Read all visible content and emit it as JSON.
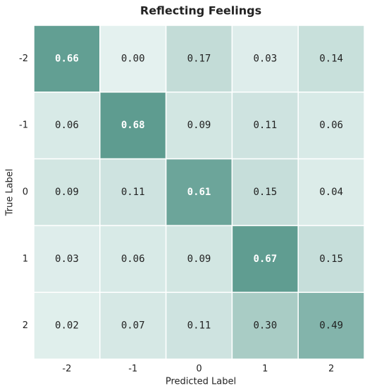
{
  "chart_data": {
    "type": "heatmap",
    "title": "Reflecting Feelings",
    "xlabel": "Predicted Label",
    "ylabel": "True Label",
    "x_categories": [
      "-2",
      "-1",
      "0",
      "1",
      "2"
    ],
    "y_categories": [
      "-2",
      "-1",
      "0",
      "1",
      "2"
    ],
    "values": [
      [
        0.66,
        0,
        0.17,
        0.03,
        0.14
      ],
      [
        0.06,
        0.68,
        0.09,
        0.11,
        0.06
      ],
      [
        0.09,
        0.11,
        0.61,
        0.15,
        0.04
      ],
      [
        0.03,
        0.06,
        0.09,
        0.67,
        0.15
      ],
      [
        0.02,
        0.07,
        0.11,
        0.3,
        0.49
      ]
    ],
    "value_labels": [
      [
        "0.66",
        "0.00",
        "0.17",
        "0.03",
        "0.14"
      ],
      [
        "0.06",
        "0.68",
        "0.09",
        "0.11",
        "0.06"
      ],
      [
        "0.09",
        "0.11",
        "0.61",
        "0.15",
        "0.04"
      ],
      [
        "0.03",
        "0.06",
        "0.09",
        "0.67",
        "0.15"
      ],
      [
        "0.02",
        "0.07",
        "0.11",
        "0.30",
        "0.49"
      ]
    ],
    "colormap": [
      "#e4f1ef",
      "#5e9c90"
    ]
  }
}
